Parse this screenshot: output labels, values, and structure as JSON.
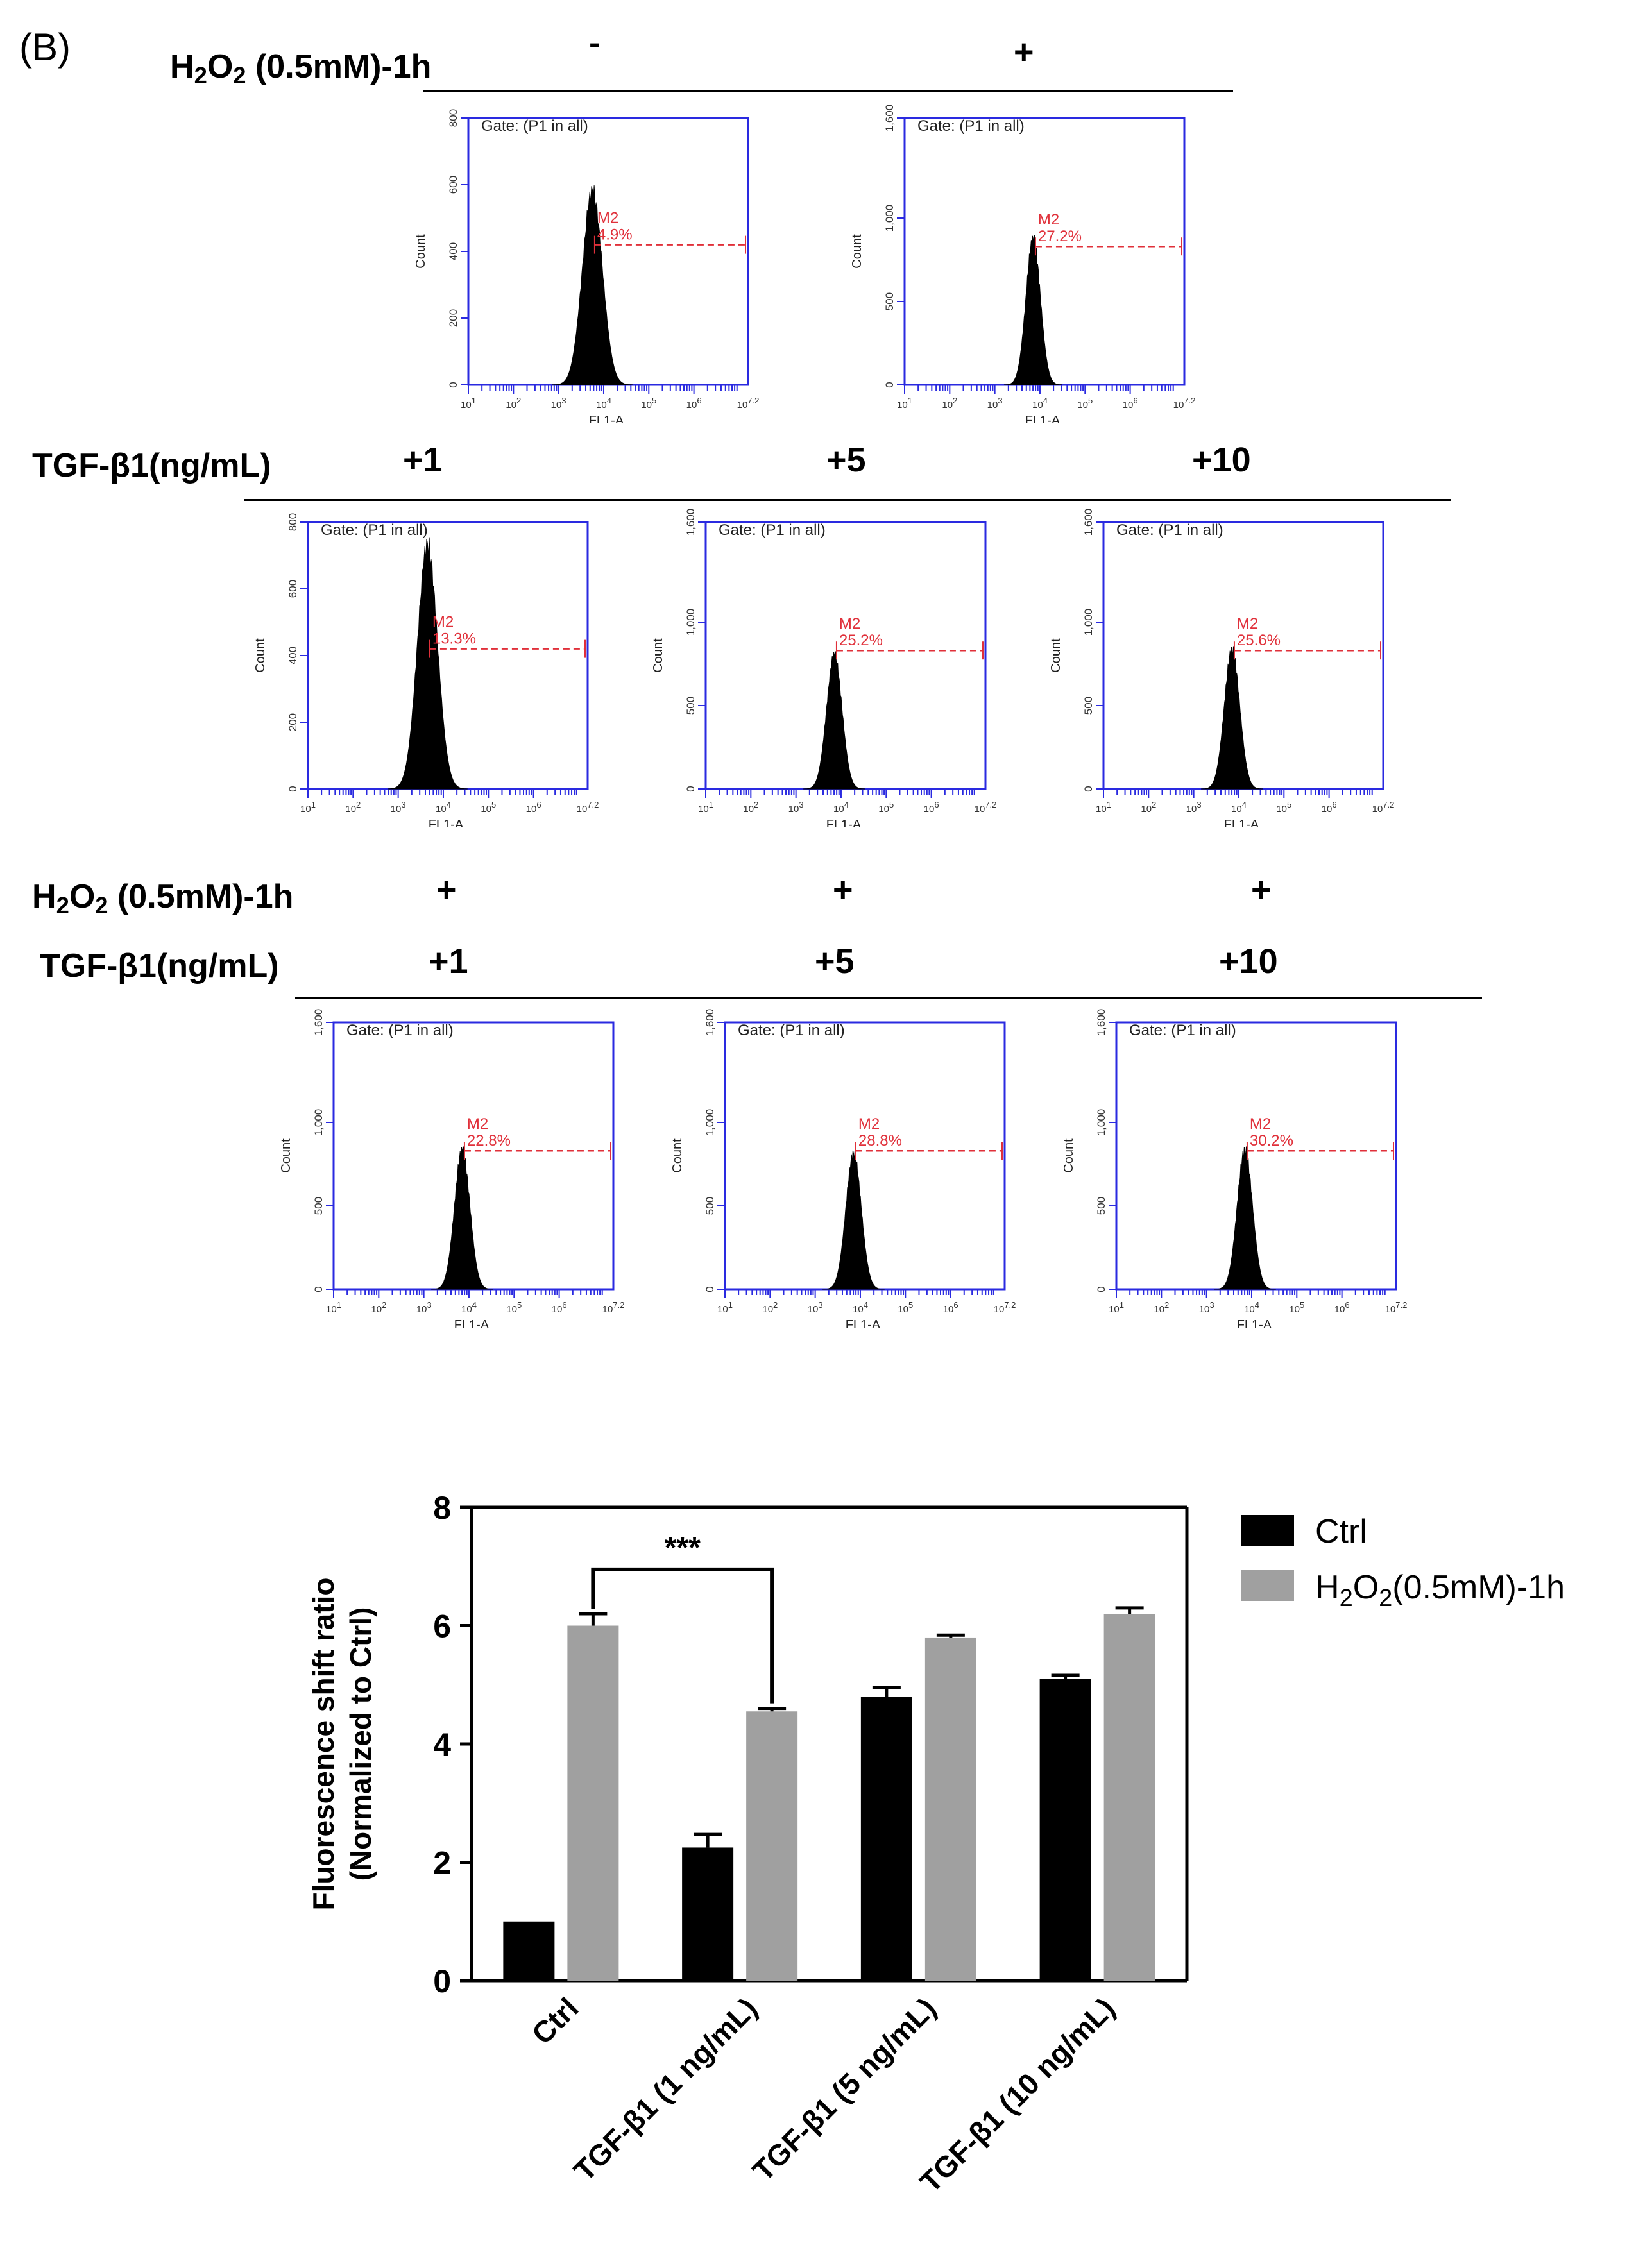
{
  "panel_label": "(B)",
  "conditions": {
    "h2o2_label_parts": [
      "H",
      "2",
      "O",
      "2",
      " (0.5mM)-1h"
    ],
    "tgf_label": "TGF-β1(ng/mL)",
    "row1_signs": [
      "-",
      "+"
    ],
    "row2_doses": [
      "+1",
      "+5",
      "+10"
    ],
    "row3_h2o2_signs": [
      "+",
      "+",
      "+"
    ],
    "row3_doses": [
      "+1",
      "+5",
      "+10"
    ]
  },
  "histograms": [
    {
      "id": "ctrl",
      "gate": "Gate: (P1 in all)",
      "marker": "M2",
      "percent": "4.9%",
      "ymax": 800,
      "y_ticks": [
        "0",
        "200",
        "400",
        "600",
        "800"
      ],
      "y_tick_vals": [
        0,
        200,
        400,
        600,
        800
      ],
      "peak": 580,
      "peak_pos": 3.75,
      "width": 0.22,
      "gate_level": 420,
      "xlabel": "FL1-A",
      "ylabel": "Count"
    },
    {
      "id": "h2o2",
      "gate": "Gate: (P1 in all)",
      "marker": "M2",
      "percent": "27.2%",
      "ymax": 1600,
      "y_ticks": [
        "0",
        "500",
        "1,000",
        "1,600"
      ],
      "y_tick_vals": [
        0,
        500,
        1000,
        1600
      ],
      "peak": 870,
      "peak_pos": 3.85,
      "width": 0.16,
      "gate_level": 830,
      "xlabel": "FL1-A",
      "ylabel": "Count"
    },
    {
      "id": "tgf1",
      "gate": "Gate: (P1 in all)",
      "marker": "M2",
      "percent": "13.3%",
      "ymax": 800,
      "y_ticks": [
        "0",
        "200",
        "400",
        "600",
        "800"
      ],
      "y_tick_vals": [
        0,
        200,
        400,
        600,
        800
      ],
      "peak": 730,
      "peak_pos": 3.65,
      "width": 0.22,
      "gate_level": 420,
      "xlabel": "FL1-A",
      "ylabel": "Count"
    },
    {
      "id": "tgf5",
      "gate": "Gate: (P1 in all)",
      "marker": "M2",
      "percent": "25.2%",
      "ymax": 1600,
      "y_ticks": [
        "0",
        "500",
        "1,000",
        "1,600"
      ],
      "y_tick_vals": [
        0,
        500,
        1000,
        1600
      ],
      "peak": 800,
      "peak_pos": 3.85,
      "width": 0.17,
      "gate_level": 830,
      "xlabel": "FL1-A",
      "ylabel": "Count"
    },
    {
      "id": "tgf10",
      "gate": "Gate: (P1 in all)",
      "marker": "M2",
      "percent": "25.6%",
      "ymax": 1600,
      "y_ticks": [
        "0",
        "500",
        "1,000",
        "1,600"
      ],
      "y_tick_vals": [
        0,
        500,
        1000,
        1600
      ],
      "peak": 830,
      "peak_pos": 3.85,
      "width": 0.17,
      "gate_level": 830,
      "xlabel": "FL1-A",
      "ylabel": "Count"
    },
    {
      "id": "h2o2_tgf1",
      "gate": "Gate: (P1 in all)",
      "marker": "M2",
      "percent": "22.8%",
      "ymax": 1600,
      "y_ticks": [
        "0",
        "500",
        "1,000",
        "1,600"
      ],
      "y_tick_vals": [
        0,
        500,
        1000,
        1600
      ],
      "peak": 830,
      "peak_pos": 3.85,
      "width": 0.17,
      "gate_level": 830,
      "xlabel": "FL1-A",
      "ylabel": "Count"
    },
    {
      "id": "h2o2_tgf5",
      "gate": "Gate: (P1 in all)",
      "marker": "M2",
      "percent": "28.8%",
      "ymax": 1600,
      "y_ticks": [
        "0",
        "500",
        "1,000",
        "1,600"
      ],
      "y_tick_vals": [
        0,
        500,
        1000,
        1600
      ],
      "peak": 810,
      "peak_pos": 3.85,
      "width": 0.17,
      "gate_level": 830,
      "xlabel": "FL1-A",
      "ylabel": "Count"
    },
    {
      "id": "h2o2_tgf10",
      "gate": "Gate: (P1 in all)",
      "marker": "M2",
      "percent": "30.2%",
      "ymax": 1600,
      "y_ticks": [
        "0",
        "500",
        "1,000",
        "1,600"
      ],
      "y_tick_vals": [
        0,
        500,
        1000,
        1600
      ],
      "peak": 830,
      "peak_pos": 3.85,
      "width": 0.17,
      "gate_level": 830,
      "xlabel": "FL1-A",
      "ylabel": "Count"
    }
  ],
  "hist_x_ticks": [
    "10^1",
    "10^2",
    "10^3",
    "10^4",
    "10^5",
    "10^6",
    "10^7.2"
  ],
  "hist_x_tick_vals": [
    1,
    2,
    3,
    4,
    5,
    6,
    7.2
  ],
  "colors": {
    "gate": "#e0303a",
    "axis": "#2a2ae0",
    "black_bar": "#000000",
    "gray_bar": "#a0a0a0"
  },
  "chart_data": {
    "type": "bar",
    "categories": [
      "Ctrl",
      "TGF-β1 (1 ng/mL)",
      "TGF-β1 (5 ng/mL)",
      "TGF-β1 (10 ng/mL)"
    ],
    "series": [
      {
        "name": "Ctrl",
        "values": [
          1.0,
          2.25,
          4.8,
          5.1
        ],
        "errors": [
          0.0,
          0.22,
          0.15,
          0.06
        ],
        "color": "#000000"
      },
      {
        "name": "H2O2(0.5mM)-1h",
        "values": [
          6.0,
          4.55,
          5.8,
          6.2
        ],
        "errors": [
          0.2,
          0.05,
          0.04,
          0.1
        ],
        "color": "#a0a0a0"
      }
    ],
    "ylabel_line1": "Fluorescence shift ratio",
    "ylabel_line2": "(Normalized to  Ctrl)",
    "ylim": [
      0,
      8
    ],
    "y_ticks": [
      "0",
      "2",
      "4",
      "6",
      "8"
    ],
    "y_tick_vals": [
      0,
      2,
      4,
      6,
      8
    ],
    "legend_labels": [
      "Ctrl",
      "H",
      "2",
      "O",
      "2",
      "(0.5mM)-1h"
    ],
    "significance": "***"
  }
}
